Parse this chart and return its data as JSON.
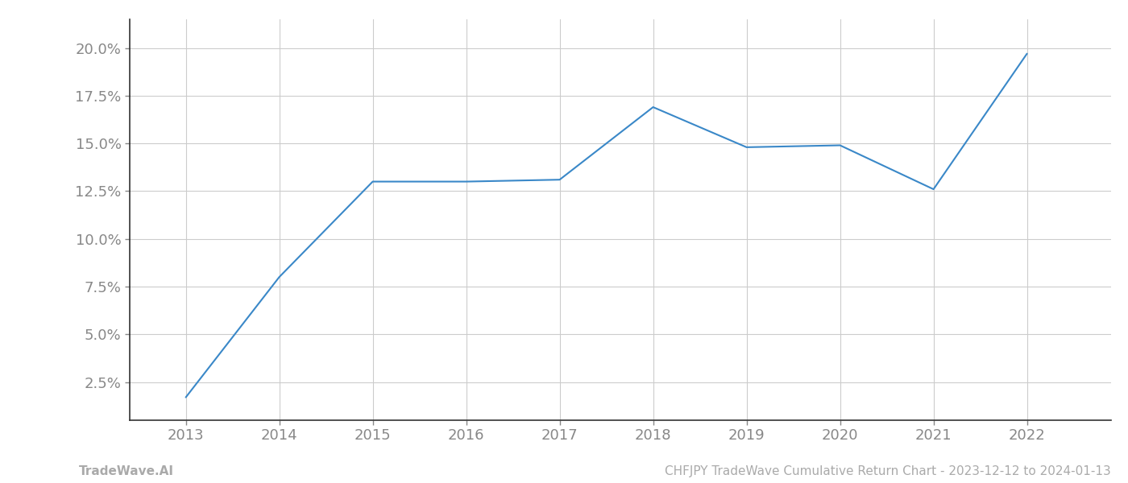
{
  "x": [
    2013,
    2014,
    2015,
    2016,
    2017,
    2018,
    2019,
    2020,
    2021,
    2022
  ],
  "y": [
    1.7,
    8.0,
    13.0,
    13.0,
    13.1,
    16.9,
    14.8,
    14.9,
    12.6,
    19.7
  ],
  "line_color": "#3a88c8",
  "line_width": 1.5,
  "background_color": "#ffffff",
  "grid_color": "#cccccc",
  "ylabel_ticks": [
    2.5,
    5.0,
    7.5,
    10.0,
    12.5,
    15.0,
    17.5,
    20.0
  ],
  "xlim": [
    2012.4,
    2022.9
  ],
  "ylim": [
    0.5,
    21.5
  ],
  "xtick_labels": [
    "2013",
    "2014",
    "2015",
    "2016",
    "2017",
    "2018",
    "2019",
    "2020",
    "2021",
    "2022"
  ],
  "xtick_positions": [
    2013,
    2014,
    2015,
    2016,
    2017,
    2018,
    2019,
    2020,
    2021,
    2022
  ],
  "footer_left": "TradeWave.AI",
  "footer_right": "CHFJPY TradeWave Cumulative Return Chart - 2023-12-12 to 2024-01-13",
  "footer_color": "#aaaaaa",
  "footer_fontsize": 11,
  "tick_color": "#888888",
  "tick_fontsize": 13,
  "spine_color": "#333333"
}
